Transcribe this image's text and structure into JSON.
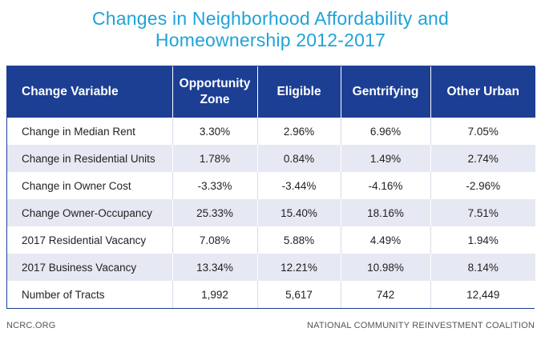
{
  "title": {
    "line1": "Changes in Neighborhood Affordability and",
    "line2": "Homeownership 2012-2017"
  },
  "table": {
    "headers": [
      "Change Variable",
      "Opportunity Zone",
      "Eligible",
      "Gentrifying",
      "Other Urban"
    ],
    "rows": [
      [
        "Change in Median Rent",
        "3.30%",
        "2.96%",
        "6.96%",
        "7.05%"
      ],
      [
        "Change in Residential Units",
        "1.78%",
        "0.84%",
        "1.49%",
        "2.74%"
      ],
      [
        "Change in Owner Cost",
        "-3.33%",
        "-3.44%",
        "-4.16%",
        "-2.96%"
      ],
      [
        "Change Owner-Occupancy",
        "25.33%",
        "15.40%",
        "18.16%",
        "7.51%"
      ],
      [
        "2017 Residential Vacancy",
        "7.08%",
        "5.88%",
        "4.49%",
        "1.94%"
      ],
      [
        "2017 Business Vacancy",
        "13.34%",
        "12.21%",
        "10.98%",
        "8.14%"
      ],
      [
        "Number of Tracts",
        "1,992",
        "5,617",
        "742",
        "12,449"
      ]
    ]
  },
  "footer": {
    "left": "NCRC.ORG",
    "right": "NATIONAL COMMUNITY REINVESTMENT COALITION"
  },
  "colors": {
    "title": "#1fa3d8",
    "header_bg": "#1c3f94",
    "stripe": "#e6e8f3"
  }
}
